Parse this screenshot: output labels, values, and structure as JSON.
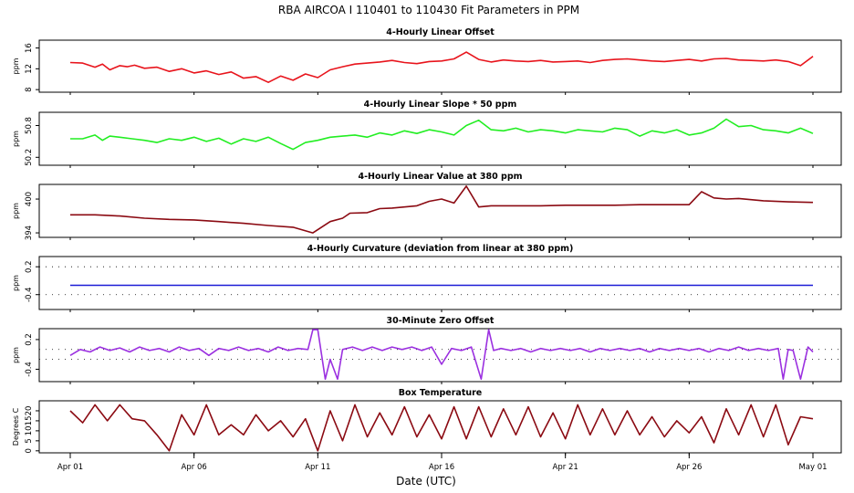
{
  "title": "RBA   AIRCOA I   110401 to 110430   Fit Parameters in PPM",
  "xlabel": "Date (UTC)",
  "x_ticks": [
    "Apr 01",
    "Apr 06",
    "Apr 11",
    "Apr 16",
    "Apr 21",
    "Apr 26",
    "May 01"
  ],
  "chart_data": [
    {
      "type": "line",
      "title": "4-Hourly Linear Offset",
      "ylabel": "ppm",
      "yticks": [
        "8",
        "12",
        "16"
      ],
      "ylim": [
        7.5,
        17.5
      ],
      "color": "#e8141c",
      "series": [
        {
          "x": [
            0,
            0.5,
            1,
            1.3,
            1.6,
            2,
            2.3,
            2.6,
            3,
            3.5,
            4,
            4.5,
            5,
            5.5,
            6,
            6.5,
            7,
            7.5,
            8,
            8.5,
            9,
            9.5,
            10,
            10.5,
            11,
            11.5,
            12,
            12.5,
            13,
            13.5,
            14,
            14.5,
            15,
            15.5,
            16,
            16.5,
            17,
            17.5,
            18,
            18.5,
            19,
            19.5,
            20,
            20.5,
            21,
            21.5,
            22,
            22.5,
            23,
            23.5,
            24,
            24.5,
            25,
            25.5,
            26,
            26.5,
            27,
            27.5,
            28,
            28.5,
            29,
            29.5,
            30
          ],
          "values": [
            13.2,
            13.1,
            12.3,
            12.9,
            11.8,
            12.6,
            12.4,
            12.7,
            12.1,
            12.3,
            11.5,
            12.0,
            11.2,
            11.6,
            10.9,
            11.4,
            10.2,
            10.5,
            9.4,
            10.6,
            9.8,
            11.0,
            10.3,
            11.8,
            12.4,
            12.9,
            13.1,
            13.3,
            13.6,
            13.2,
            13.0,
            13.4,
            13.5,
            13.9,
            15.2,
            13.8,
            13.3,
            13.7,
            13.5,
            13.4,
            13.6,
            13.3,
            13.4,
            13.5,
            13.2,
            13.6,
            13.8,
            13.9,
            13.7,
            13.5,
            13.4,
            13.6,
            13.8,
            13.5,
            13.9,
            14.0,
            13.7,
            13.6,
            13.5,
            13.7,
            13.4,
            12.6,
            14.4
          ]
        }
      ]
    },
    {
      "type": "line",
      "title": "4-Hourly Linear Slope * 50 ppm",
      "ylabel": "ppm",
      "yticks": [
        "50.2",
        "50.8"
      ],
      "ylim": [
        50.05,
        51.05
      ],
      "color": "#22ee22",
      "series": [
        {
          "x": [
            0,
            0.5,
            1,
            1.3,
            1.6,
            2,
            2.5,
            3,
            3.5,
            4,
            4.5,
            5,
            5.5,
            6,
            6.5,
            7,
            7.5,
            8,
            8.5,
            9,
            9.5,
            10,
            10.5,
            11,
            11.5,
            12,
            12.5,
            13,
            13.5,
            14,
            14.5,
            15,
            15.5,
            16,
            16.5,
            17,
            17.5,
            18,
            18.5,
            19,
            19.5,
            20,
            20.5,
            21,
            21.5,
            22,
            22.5,
            23,
            23.5,
            24,
            24.5,
            25,
            25.5,
            26,
            26.5,
            27,
            27.5,
            28,
            28.5,
            29,
            29.5,
            30
          ],
          "values": [
            50.55,
            50.55,
            50.62,
            50.52,
            50.6,
            50.58,
            50.55,
            50.52,
            50.48,
            50.55,
            50.52,
            50.58,
            50.5,
            50.56,
            50.45,
            50.55,
            50.5,
            50.58,
            50.46,
            50.35,
            50.48,
            50.52,
            50.58,
            50.6,
            50.62,
            50.58,
            50.66,
            50.62,
            50.7,
            50.65,
            50.72,
            50.68,
            50.62,
            50.8,
            50.9,
            50.72,
            50.7,
            50.75,
            50.68,
            50.72,
            50.7,
            50.66,
            50.72,
            50.7,
            50.68,
            50.75,
            50.72,
            50.6,
            50.7,
            50.66,
            50.72,
            50.62,
            50.66,
            50.75,
            50.92,
            50.78,
            50.8,
            50.72,
            50.7,
            50.66,
            50.75,
            50.65
          ]
        }
      ]
    },
    {
      "type": "line",
      "title": "4-Hourly Linear Value at 380 ppm",
      "ylabel": "ppm",
      "yticks": [
        "394",
        "400"
      ],
      "ylim": [
        393.2,
        402.6
      ],
      "color": "#8b0a12",
      "series": [
        {
          "x": [
            0,
            1,
            2,
            3,
            4,
            5,
            6,
            7,
            8,
            9,
            9.8,
            10.5,
            11,
            11.3,
            12,
            12.5,
            13,
            14,
            14.5,
            15,
            15.5,
            16,
            16.5,
            17,
            18,
            19,
            20,
            21,
            22,
            23,
            24,
            25,
            25.5,
            26,
            26.5,
            27,
            28,
            29,
            30
          ],
          "values": [
            397.2,
            397.2,
            397.0,
            396.6,
            396.4,
            396.3,
            396.0,
            395.7,
            395.3,
            395.0,
            394.0,
            396.0,
            396.6,
            397.5,
            397.6,
            398.3,
            398.4,
            398.8,
            399.6,
            400.0,
            399.3,
            402.3,
            398.6,
            398.8,
            398.8,
            398.8,
            398.9,
            398.9,
            398.9,
            399.0,
            399.0,
            399.0,
            401.3,
            400.2,
            400.0,
            400.1,
            399.7,
            399.5,
            399.4
          ]
        }
      ]
    },
    {
      "type": "line",
      "title": "4-Hourly Curvature (deviation from linear at 380 ppm)",
      "ylabel": "ppm",
      "yticks": [
        "-0.4",
        "0.2"
      ],
      "ylim": [
        -0.72,
        0.42
      ],
      "color": "#1c1cd6",
      "series": [
        {
          "x": [
            0,
            30
          ],
          "values": [
            -0.2,
            -0.2
          ]
        }
      ]
    },
    {
      "type": "line",
      "title": "30-Minute Zero Offset",
      "ylabel": "ppm",
      "yticks": [
        "-0.4",
        "0.2"
      ],
      "ylim": [
        -0.65,
        0.42
      ],
      "color": "#9b30e0",
      "series": [
        {
          "x": [
            0,
            0.4,
            0.8,
            1.2,
            1.6,
            2,
            2.4,
            2.8,
            3.2,
            3.6,
            4,
            4.4,
            4.8,
            5.2,
            5.6,
            6,
            6.4,
            6.8,
            7.2,
            7.6,
            8,
            8.4,
            8.8,
            9.2,
            9.6,
            9.8,
            10,
            10.3,
            10.5,
            10.8,
            11,
            11.4,
            11.8,
            12.2,
            12.6,
            13,
            13.4,
            13.8,
            14.2,
            14.6,
            15,
            15.4,
            15.8,
            16.2,
            16.6,
            16.9,
            17.1,
            17.4,
            17.8,
            18.2,
            18.6,
            19,
            19.4,
            19.8,
            20.2,
            20.6,
            21,
            21.4,
            21.8,
            22.2,
            22.6,
            23,
            23.4,
            23.8,
            24.2,
            24.6,
            25,
            25.4,
            25.8,
            26.2,
            26.6,
            27,
            27.4,
            27.8,
            28.2,
            28.6,
            28.8,
            29,
            29.2,
            29.5,
            29.8,
            30
          ],
          "values": [
            -0.12,
            0.0,
            -0.05,
            0.05,
            -0.02,
            0.03,
            -0.05,
            0.05,
            -0.02,
            0.02,
            -0.05,
            0.05,
            -0.02,
            0.02,
            -0.12,
            0.02,
            -0.02,
            0.05,
            -0.02,
            0.02,
            -0.05,
            0.05,
            -0.02,
            0.02,
            0.0,
            0.4,
            0.4,
            -0.6,
            -0.2,
            -0.6,
            0.0,
            0.05,
            -0.02,
            0.05,
            -0.02,
            0.05,
            0.0,
            0.05,
            -0.02,
            0.05,
            -0.3,
            0.02,
            -0.02,
            0.05,
            -0.6,
            0.4,
            -0.02,
            0.02,
            -0.02,
            0.02,
            -0.05,
            0.02,
            -0.02,
            0.02,
            -0.02,
            0.02,
            -0.05,
            0.02,
            -0.02,
            0.02,
            -0.02,
            0.02,
            -0.05,
            0.02,
            -0.02,
            0.02,
            -0.02,
            0.02,
            -0.05,
            0.02,
            -0.02,
            0.05,
            -0.02,
            0.02,
            -0.02,
            0.02,
            -0.6,
            0.0,
            -0.02,
            -0.6,
            0.05,
            -0.05
          ]
        }
      ]
    },
    {
      "type": "line",
      "title": "Box Temperature",
      "ylabel": "Degrees C",
      "yticks": [
        "0",
        "5",
        "10",
        "15",
        "20"
      ],
      "ylim": [
        -1,
        25
      ],
      "color": "#8b0a12",
      "series": [
        {
          "x": [
            0,
            0.5,
            1,
            1.5,
            2,
            2.5,
            3,
            3.5,
            4,
            4.5,
            5,
            5.5,
            6,
            6.5,
            7,
            7.5,
            8,
            8.5,
            9,
            9.5,
            10,
            10.5,
            11,
            11.5,
            12,
            12.5,
            13,
            13.5,
            14,
            14.5,
            15,
            15.5,
            16,
            16.5,
            17,
            17.5,
            18,
            18.5,
            19,
            19.5,
            20,
            20.5,
            21,
            21.5,
            22,
            22.5,
            23,
            23.5,
            24,
            24.5,
            25,
            25.5,
            26,
            26.5,
            27,
            27.5,
            28,
            28.5,
            29,
            29.5,
            30
          ],
          "values": [
            20,
            14,
            23,
            15,
            23,
            16,
            15,
            8,
            0,
            18,
            8,
            23,
            8,
            13,
            8,
            18,
            10,
            15,
            7,
            16,
            0,
            20,
            5,
            23,
            7,
            19,
            8,
            22,
            7,
            18,
            6,
            22,
            6,
            22,
            7,
            21,
            8,
            22,
            7,
            19,
            6,
            23,
            8,
            21,
            8,
            20,
            8,
            17,
            7,
            15,
            9,
            17,
            4,
            21,
            8,
            23,
            7,
            23,
            3,
            17,
            16
          ]
        }
      ]
    }
  ]
}
